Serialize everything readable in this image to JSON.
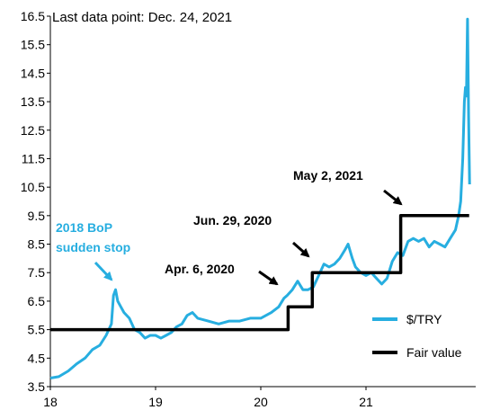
{
  "chart_data": {
    "type": "line",
    "note": "Last data point: Dec. 24, 2021",
    "xlim": [
      18,
      22
    ],
    "ylim": [
      3.5,
      16.5
    ],
    "x_ticks": [
      "18",
      "19",
      "20",
      "21"
    ],
    "x_tick_values": [
      18,
      19,
      20,
      21
    ],
    "y_ticks": [
      "3.5",
      "4.5",
      "5.5",
      "6.5",
      "7.5",
      "8.5",
      "9.5",
      "10.5",
      "11.5",
      "12.5",
      "13.5",
      "14.5",
      "15.5",
      "16.5"
    ],
    "y_tick_values": [
      3.5,
      4.5,
      5.5,
      6.5,
      7.5,
      8.5,
      9.5,
      10.5,
      11.5,
      12.5,
      13.5,
      14.5,
      15.5,
      16.5
    ],
    "grid": false,
    "legend_position": "bottom-right",
    "series": [
      {
        "name": "$/TRY",
        "color": "#27aee0",
        "x": [
          18.0,
          18.08,
          18.17,
          18.25,
          18.33,
          18.4,
          18.47,
          18.53,
          18.58,
          18.6,
          18.62,
          18.64,
          18.67,
          18.7,
          18.75,
          18.8,
          18.85,
          18.9,
          18.95,
          19.0,
          19.05,
          19.1,
          19.15,
          19.2,
          19.25,
          19.3,
          19.35,
          19.4,
          19.5,
          19.6,
          19.7,
          19.8,
          19.9,
          20.0,
          20.1,
          20.17,
          20.22,
          20.25,
          20.3,
          20.35,
          20.4,
          20.45,
          20.5,
          20.55,
          20.6,
          20.65,
          20.7,
          20.75,
          20.8,
          20.83,
          20.87,
          20.9,
          20.95,
          21.0,
          21.05,
          21.1,
          21.15,
          21.2,
          21.25,
          21.3,
          21.35,
          21.4,
          21.45,
          21.5,
          21.55,
          21.6,
          21.65,
          21.7,
          21.75,
          21.8,
          21.85,
          21.88,
          21.9,
          21.92,
          21.935,
          21.945,
          21.955,
          21.965,
          21.975,
          21.985
        ],
        "values": [
          3.8,
          3.85,
          4.05,
          4.3,
          4.5,
          4.8,
          4.95,
          5.3,
          5.7,
          6.7,
          6.9,
          6.5,
          6.3,
          6.1,
          5.9,
          5.5,
          5.4,
          5.2,
          5.3,
          5.3,
          5.2,
          5.3,
          5.4,
          5.6,
          5.7,
          6.0,
          6.1,
          5.9,
          5.8,
          5.7,
          5.8,
          5.8,
          5.9,
          5.9,
          6.1,
          6.3,
          6.6,
          6.7,
          6.9,
          7.2,
          6.9,
          6.9,
          7.0,
          7.4,
          7.8,
          7.7,
          7.8,
          8.0,
          8.3,
          8.5,
          8.0,
          7.7,
          7.5,
          7.4,
          7.5,
          7.3,
          7.1,
          7.3,
          7.9,
          8.2,
          8.1,
          8.6,
          8.7,
          8.6,
          8.7,
          8.4,
          8.6,
          8.5,
          8.4,
          8.7,
          9.0,
          9.5,
          10.0,
          11.5,
          13.5,
          14.0,
          13.7,
          16.4,
          13.0,
          10.6
        ]
      },
      {
        "name": "Fair value",
        "color": "#000000",
        "x": [
          18.0,
          20.26,
          20.26,
          20.49,
          20.49,
          21.33,
          21.33,
          21.98
        ],
        "values": [
          5.5,
          5.5,
          6.3,
          6.3,
          7.5,
          7.5,
          9.5,
          9.5
        ]
      }
    ],
    "annotations": [
      {
        "text": "2018 BoP",
        "style": "blue"
      },
      {
        "text": "sudden stop",
        "style": "blue"
      },
      {
        "text": "Apr. 6, 2020",
        "style": "black"
      },
      {
        "text": "Jun. 29, 2020",
        "style": "black"
      },
      {
        "text": "May 2, 2021",
        "style": "black"
      }
    ]
  }
}
